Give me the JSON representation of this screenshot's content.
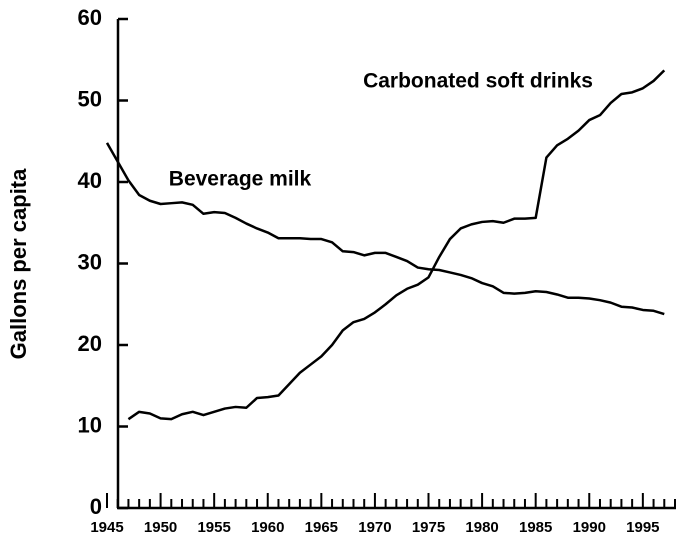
{
  "chart_data": {
    "type": "line",
    "y_label": "Gallons per capita",
    "x": [
      1945,
      1946,
      1947,
      1948,
      1949,
      1950,
      1951,
      1952,
      1953,
      1954,
      1955,
      1956,
      1957,
      1958,
      1959,
      1960,
      1961,
      1962,
      1963,
      1964,
      1965,
      1966,
      1967,
      1968,
      1969,
      1970,
      1971,
      1972,
      1973,
      1974,
      1975,
      1976,
      1977,
      1978,
      1979,
      1980,
      1981,
      1982,
      1983,
      1984,
      1985,
      1986,
      1987,
      1988,
      1989,
      1990,
      1991,
      1992,
      1993,
      1994,
      1995,
      1996,
      1997
    ],
    "series": [
      {
        "name": "Beverage milk",
        "color": "#000000",
        "values": [
          44.8,
          42.5,
          40.2,
          38.4,
          37.7,
          37.3,
          37.4,
          37.5,
          37.2,
          36.1,
          36.3,
          36.2,
          35.6,
          34.9,
          34.3,
          33.8,
          33.1,
          33.1,
          33.1,
          33.0,
          33.0,
          32.6,
          31.5,
          31.4,
          31.0,
          31.3,
          31.3,
          30.8,
          30.3,
          29.5,
          29.3,
          29.2,
          28.9,
          28.6,
          28.2,
          27.6,
          27.2,
          26.4,
          26.3,
          26.4,
          26.6,
          26.5,
          26.2,
          25.8,
          25.8,
          25.7,
          25.5,
          25.2,
          24.7,
          24.6,
          24.3,
          24.2,
          23.8
        ]
      },
      {
        "name": "Carbonated soft drinks",
        "color": "#000000",
        "values": [
          null,
          null,
          10.9,
          11.8,
          11.6,
          11.0,
          10.9,
          11.5,
          11.8,
          11.4,
          11.8,
          12.2,
          12.4,
          12.3,
          13.5,
          13.6,
          13.8,
          15.2,
          16.6,
          17.6,
          18.6,
          20.0,
          21.8,
          22.8,
          23.2,
          24.0,
          25.0,
          26.1,
          26.9,
          27.4,
          28.3,
          30.8,
          33.0,
          34.3,
          34.8,
          35.1,
          35.2,
          35.0,
          35.5,
          35.5,
          35.6,
          43.0,
          44.5,
          45.3,
          46.3,
          47.6,
          48.2,
          49.7,
          50.8,
          51.0,
          51.5,
          52.4,
          53.7
        ]
      }
    ],
    "xlim": [
      1945,
      1998
    ],
    "xticks": [
      1945,
      1950,
      1955,
      1960,
      1965,
      1970,
      1975,
      1980,
      1985,
      1990,
      1995
    ],
    "xminorticks": [
      1946,
      1947,
      1948,
      1949,
      1951,
      1952,
      1953,
      1954,
      1956,
      1957,
      1958,
      1959,
      1961,
      1962,
      1963,
      1964,
      1966,
      1967,
      1968,
      1969,
      1971,
      1972,
      1973,
      1974,
      1976,
      1977,
      1978,
      1979,
      1981,
      1982,
      1983,
      1984,
      1986,
      1987,
      1988,
      1989,
      1991,
      1992,
      1993,
      1994,
      1996,
      1997,
      1998
    ],
    "ylim": [
      0,
      60
    ],
    "yticks": [
      0,
      10,
      20,
      30,
      40,
      50,
      60
    ],
    "grid": false
  }
}
